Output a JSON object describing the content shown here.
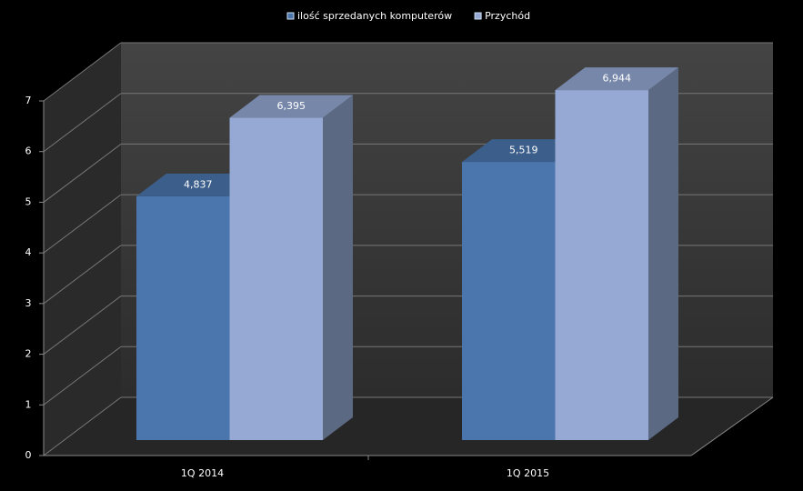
{
  "chart_data": {
    "type": "bar3d",
    "categories": [
      "1Q 2014",
      "1Q 2015"
    ],
    "series": [
      {
        "name": "ilość sprzedanych komputerów",
        "color": "#4a76ad",
        "values": [
          4.837,
          5.519
        ],
        "value_labels": [
          "4,837",
          "5,519"
        ]
      },
      {
        "name": "Przychód",
        "color": "#95a9d4",
        "values": [
          6.395,
          6.944
        ],
        "value_labels": [
          "6,395",
          "6,944"
        ]
      }
    ],
    "ylim": [
      0,
      7
    ],
    "yticks": [
      0,
      1,
      2,
      3,
      4,
      5,
      6,
      7
    ],
    "grid": true,
    "legend": "top"
  }
}
